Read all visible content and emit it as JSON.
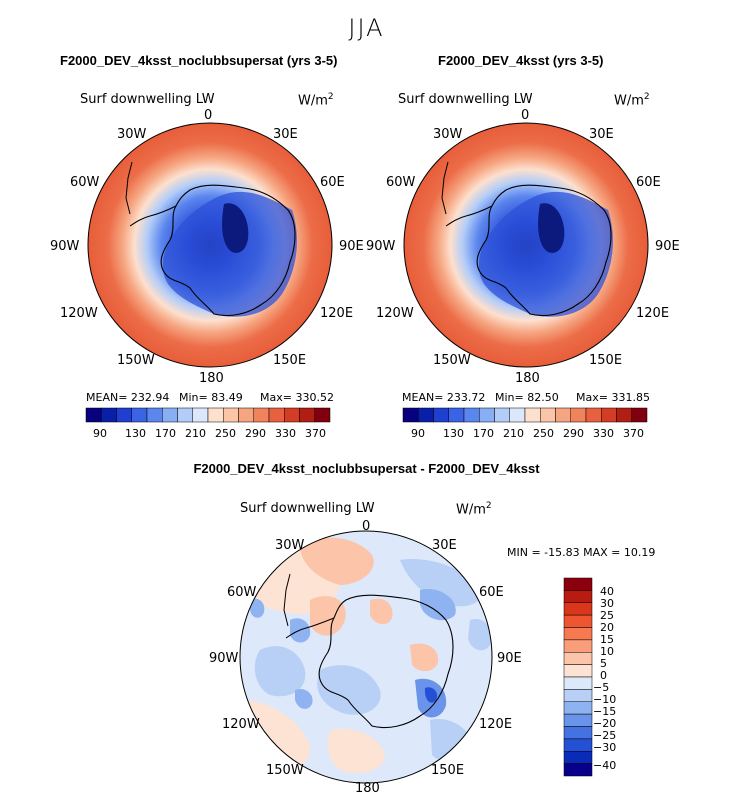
{
  "figure": {
    "season": "JJA"
  },
  "panels": [
    {
      "title": "F2000_DEV_4ksst_noclubbsupersat (yrs 3-5)",
      "variable": "Surf downwelling LW",
      "units_base": "W/m",
      "units_exp": "2",
      "lon_labels": [
        "0",
        "30E",
        "60E",
        "90E",
        "120E",
        "150E",
        "180",
        "150W",
        "120W",
        "90W",
        "60W",
        "30W"
      ],
      "stats": {
        "mean": "MEAN= 232.94",
        "min": "Min= 83.49",
        "max": "Max= 330.52"
      },
      "colorbar_ticks": [
        "90",
        "130",
        "170",
        "210",
        "250",
        "290",
        "330",
        "370"
      ]
    },
    {
      "title": "F2000_DEV_4ksst (yrs 3-5)",
      "variable": "Surf downwelling LW",
      "units_base": "W/m",
      "units_exp": "2",
      "lon_labels": [
        "0",
        "30E",
        "60E",
        "90E",
        "120E",
        "150E",
        "180",
        "150W",
        "120W",
        "90W",
        "60W",
        "30W"
      ],
      "stats": {
        "mean": "MEAN= 233.72",
        "min": "Min= 82.50",
        "max": "Max= 331.85"
      },
      "colorbar_ticks": [
        "90",
        "130",
        "170",
        "210",
        "250",
        "290",
        "330",
        "370"
      ]
    },
    {
      "title": "F2000_DEV_4ksst_noclubbsupersat - F2000_DEV_4ksst",
      "variable": "Surf downwelling LW",
      "units_base": "W/m",
      "units_exp": "2",
      "lon_labels": [
        "0",
        "30E",
        "60E",
        "90E",
        "120E",
        "150E",
        "180",
        "150W",
        "120W",
        "90W",
        "60W",
        "30W"
      ],
      "stats": {
        "minmax": "MIN = -15.83 MAX =  10.19"
      },
      "colorbar_ticks": [
        "40",
        "30",
        "25",
        "20",
        "15",
        "10",
        "5",
        "0",
        "−5",
        "−10",
        "−15",
        "−20",
        "−25",
        "−30",
        "−40"
      ]
    }
  ],
  "colors": {
    "abs_scale": [
      "#08007f",
      "#0a1fa8",
      "#1f3fd0",
      "#3b63e6",
      "#5b86ee",
      "#88aef4",
      "#b3cdf8",
      "#dbe8fb",
      "#fde0ce",
      "#fbc6a8",
      "#f6a581",
      "#f0825c",
      "#e8603f",
      "#d33c25",
      "#b01e14",
      "#80000f"
    ],
    "diff_scale": [
      "#8b000c",
      "#b81c10",
      "#d9361b",
      "#ef5530",
      "#f6794f",
      "#f99d7b",
      "#fcc4a8",
      "#fde3d4",
      "#dde9fb",
      "#b8d0f6",
      "#8fb2f0",
      "#6a94ea",
      "#4472e2",
      "#2450d6",
      "#0a2ab8",
      "#08008a"
    ]
  }
}
